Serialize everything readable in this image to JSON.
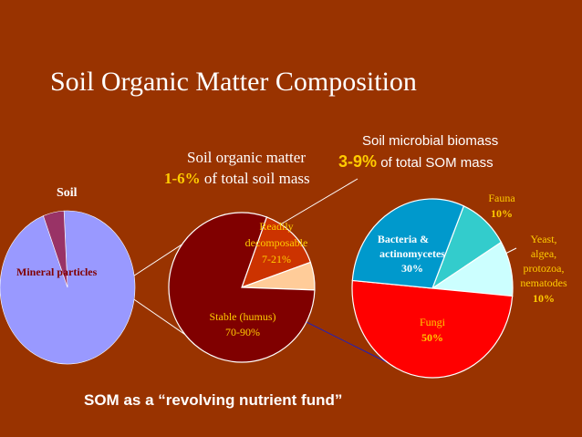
{
  "page": {
    "title": "Soil Organic Matter Composition",
    "soil_label": "Soil",
    "som": {
      "line1": "Soil organic matter",
      "pct": "1-6%",
      "line2_rest": "of total soil mass"
    },
    "microbial": {
      "line1": "Soil microbial biomass",
      "pct": "3-9%",
      "line2_rest": "of total SOM mass"
    },
    "footer": "SOM  as a “revolving nutrient fund”"
  },
  "chart_data": [
    {
      "type": "pie",
      "slices": [
        {
          "label": "Mineral particles",
          "value": 95,
          "color": "#9999ff"
        },
        {
          "label": "",
          "value": 5,
          "color": "#993366"
        }
      ]
    },
    {
      "type": "pie",
      "slices": [
        {
          "label": "Readily decomposable",
          "value_label": "7-21%",
          "value": 14,
          "color": "#cc3300"
        },
        {
          "label": "",
          "value": 6,
          "color": "#ffcc99"
        },
        {
          "label": "Stable (humus)",
          "value_label": "70-90%",
          "value": 80,
          "color": "#800000"
        }
      ]
    },
    {
      "type": "pie",
      "slices": [
        {
          "label": "Fauna",
          "value_label": "10%",
          "value": 10,
          "color": "#33cccc"
        },
        {
          "label": "Yeast, algea, protozoa, nematodes",
          "value_label": "10%",
          "value": 10,
          "color": "#ccffff"
        },
        {
          "label": "Fungi",
          "value_label": "50%",
          "value": 50,
          "color": "#ff0000"
        },
        {
          "label": "Bacteria & actinomycetes",
          "value_label": "30%",
          "value": 30,
          "color": "#0099cc"
        }
      ]
    }
  ]
}
